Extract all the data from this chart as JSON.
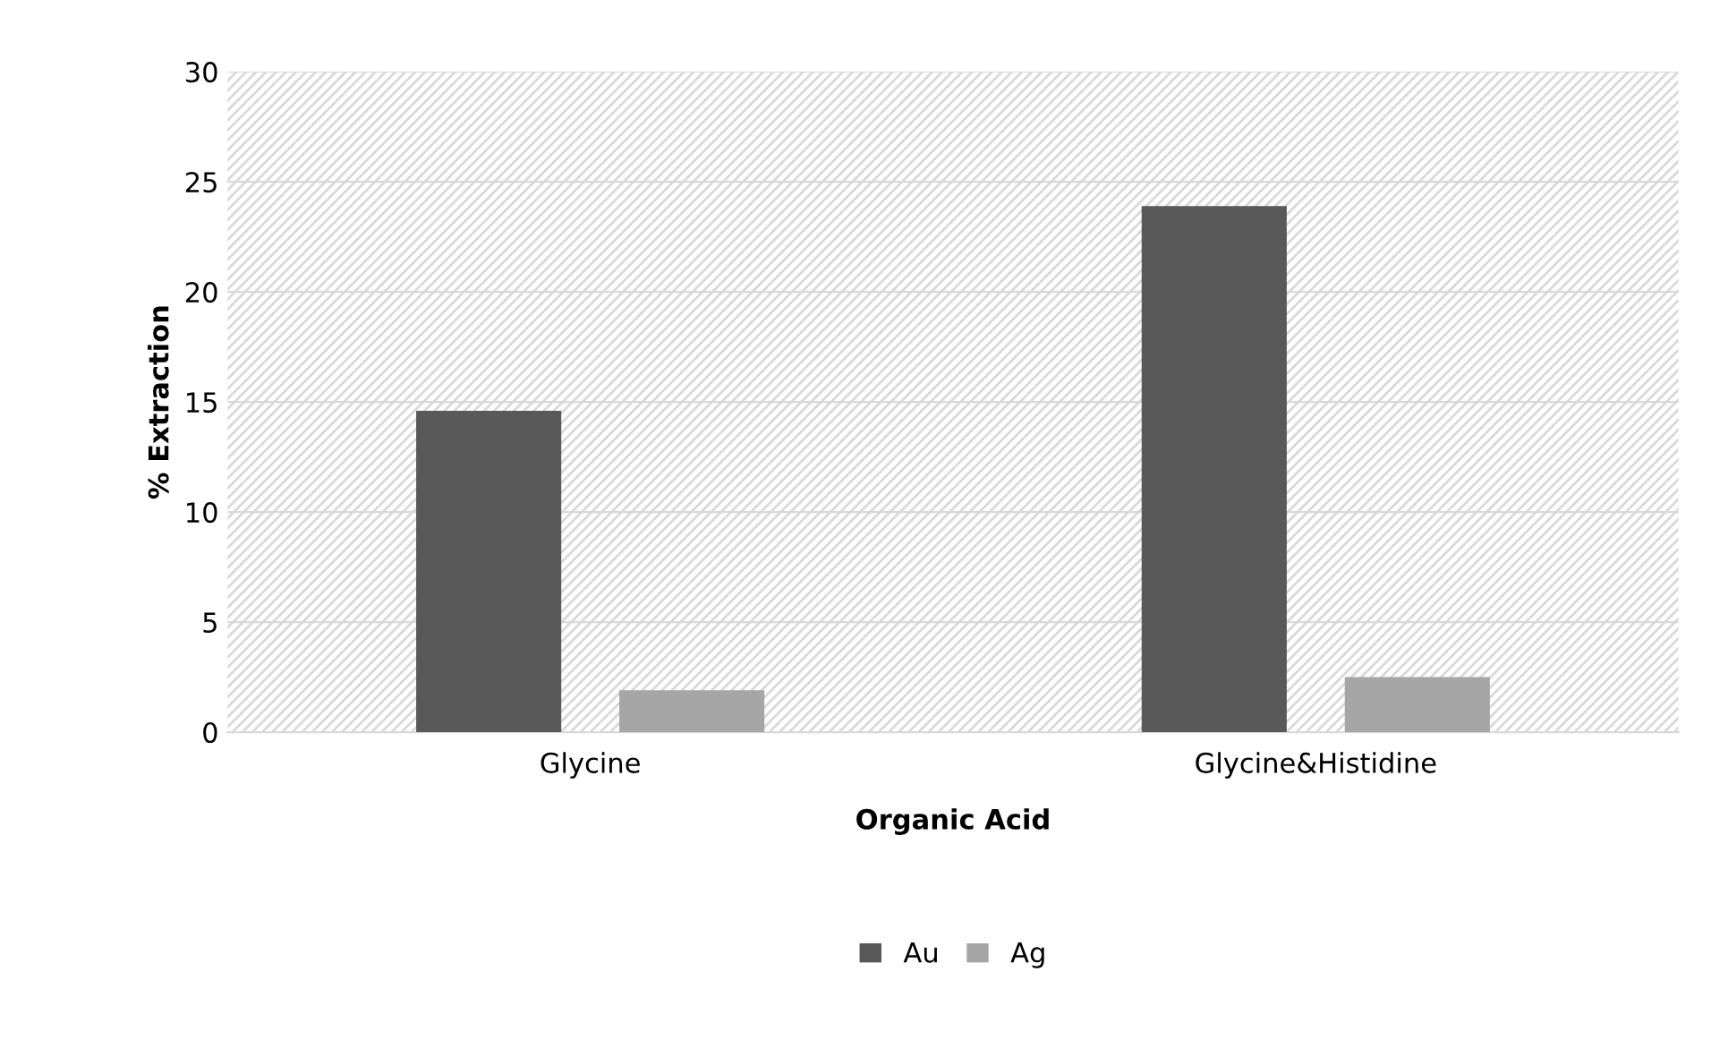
{
  "chart_data": {
    "type": "bar",
    "xlabel": "Organic Acid",
    "ylabel": "% Extraction",
    "categories": [
      "Glycine",
      "Glycine&Histidine"
    ],
    "series": [
      {
        "name": "Au",
        "color": "#595959",
        "values": [
          14.6,
          23.9
        ]
      },
      {
        "name": "Ag",
        "color": "#a6a6a6",
        "values": [
          1.9,
          2.5
        ]
      }
    ],
    "ylim": [
      0,
      30
    ],
    "yticks": [
      0,
      5,
      10,
      15,
      20,
      25,
      30
    ],
    "grid": "y",
    "legend": "bottom"
  }
}
